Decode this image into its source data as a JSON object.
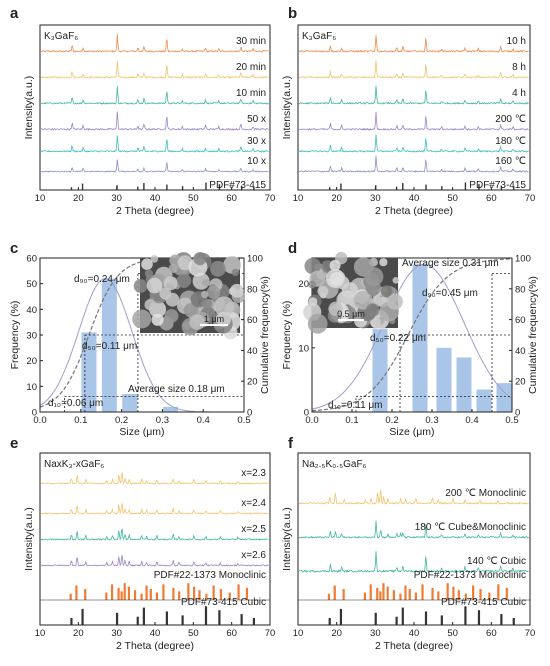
{
  "colors": {
    "orange": "#f08a4b",
    "yellow": "#f2c46d",
    "teal": "#43b7a4",
    "purple": "#9d87c6",
    "cyan": "#3fbfc0",
    "slate": "#8c93c7",
    "bar_blue": "#a9c6e8",
    "ref_orange": "#f07b32",
    "ref_black": "#333333",
    "fit_line": "#a0a0cc"
  },
  "panels": {
    "a": {
      "letter": "a",
      "compound": "K₃GaF₆",
      "ylabel": "Intensity(a.u.)",
      "xlabel": "2 Theta (degree)",
      "xticks": [
        "10",
        "20",
        "30",
        "40",
        "50",
        "60",
        "70"
      ],
      "traces": [
        "30 min",
        "20 min",
        "10 min",
        "50 x",
        "30 x",
        "10 x"
      ],
      "ref": "PDF#73-415"
    },
    "b": {
      "letter": "b",
      "compound": "K₃GaF₆",
      "ylabel": "Intensity(a.u.)",
      "xlabel": "2 Theta (degree)",
      "xticks": [
        "10",
        "20",
        "30",
        "40",
        "50",
        "60",
        "70"
      ],
      "traces": [
        "10 h",
        "8 h",
        "4 h",
        "200 ℃",
        "180 ℃",
        "160 ℃"
      ],
      "ref": "PDF#73-415"
    },
    "c": {
      "letter": "c",
      "ylabel_left": "Frequency (%)",
      "ylabel_right": "Cumulative frequency(%)",
      "xlabel": "Size (μm)",
      "xticks": [
        "0.0",
        "0.1",
        "0.2",
        "0.3",
        "0.4",
        "0.5"
      ],
      "yticks_left": [
        "0",
        "10",
        "20",
        "30",
        "40",
        "50",
        "60"
      ],
      "yticks_right": [
        "0",
        "20",
        "40",
        "60",
        "80",
        "100"
      ],
      "d90": "d₉₀=0.24 μm",
      "d50": "d₅₀=0.11 μm",
      "d10": "d₁₀=0.06 μm",
      "avg": "Average size 0.18 μm",
      "scale": "1 μm"
    },
    "d": {
      "letter": "d",
      "ylabel_left": "Frequency (%)",
      "ylabel_right": "Cumulative frequency(%)",
      "xlabel": "Size (μm)",
      "xticks": [
        "0.0",
        "0.1",
        "0.2",
        "0.3",
        "0.4",
        "0.5"
      ],
      "yticks_left": [
        "0",
        "10",
        "20"
      ],
      "yticks_right": [
        "0",
        "20",
        "40",
        "60",
        "80",
        "100"
      ],
      "d90": "d₉₀=0.45 μm",
      "d50": "d₅₀=0.22 μm",
      "d10": "d₁₀=0.11 μm",
      "avg": "Average size 0.31 μm",
      "scale": "0.5 μm"
    },
    "e": {
      "letter": "e",
      "compound": "NaxK₃-xGaF₆",
      "ylabel": "Intensity(a.u.)",
      "xlabel": "2 Theta (degree)",
      "xticks": [
        "10",
        "20",
        "30",
        "40",
        "50",
        "60",
        "70"
      ],
      "traces": [
        "x=2.3",
        "x=2.4",
        "x=2.5",
        "x=2.6"
      ],
      "ref1": "PDF#22-1373 Monoclinic",
      "ref2": "PDF#73-415 Cubic"
    },
    "f": {
      "letter": "f",
      "compound": "Na₂.₅K₀.₅GaF₆",
      "ylabel": "Intensity(a.u.)",
      "xlabel": "2 Theta (degree)",
      "xticks": [
        "10",
        "20",
        "30",
        "40",
        "50",
        "60",
        "70"
      ],
      "traces": [
        "200 ℃ Monoclinic",
        "180 ℃ Cube&Monoclinic",
        "140 ℃ Cubic"
      ],
      "ref1": "PDF#22-1373 Monoclinic",
      "ref2": "PDF#73-415 Cubic"
    }
  },
  "chart_data": [
    {
      "panel": "a",
      "type": "line",
      "xlabel": "2 Theta (degree)",
      "ylabel": "Intensity(a.u.)",
      "xlim": [
        10,
        70
      ],
      "series": [
        {
          "name": "30 min"
        },
        {
          "name": "20 min"
        },
        {
          "name": "10 min"
        },
        {
          "name": "50 x"
        },
        {
          "name": "30 x"
        },
        {
          "name": "10 x"
        }
      ],
      "reference": {
        "name": "PDF#73-415",
        "peaks": [
          18.2,
          21.1,
          30.1,
          35.5,
          37.1,
          43.1,
          47.2,
          53.3,
          56.8,
          62.6,
          65.8
        ]
      }
    },
    {
      "panel": "b",
      "type": "line",
      "xlabel": "2 Theta (degree)",
      "ylabel": "Intensity(a.u.)",
      "xlim": [
        10,
        70
      ],
      "series": [
        {
          "name": "10 h"
        },
        {
          "name": "8 h"
        },
        {
          "name": "4 h"
        },
        {
          "name": "200 ℃"
        },
        {
          "name": "180 ℃"
        },
        {
          "name": "160 ℃"
        }
      ],
      "reference": {
        "name": "PDF#73-415",
        "peaks": [
          18.2,
          21.1,
          30.1,
          35.5,
          37.1,
          43.1,
          47.2,
          53.3,
          56.8,
          62.6,
          65.8
        ]
      }
    },
    {
      "panel": "c",
      "type": "bar",
      "xlabel": "Size (μm)",
      "ylabel": "Frequency (%)",
      "y2label": "Cumulative frequency(%)",
      "xlim": [
        0,
        0.5
      ],
      "ylim": [
        0,
        60
      ],
      "y2lim": [
        0,
        100
      ],
      "bars": [
        {
          "x": 0.12,
          "y": 31
        },
        {
          "x": 0.17,
          "y": 52
        },
        {
          "x": 0.22,
          "y": 7
        },
        {
          "x": 0.32,
          "y": 2
        }
      ],
      "d10": 0.06,
      "d50": 0.11,
      "d90": 0.24,
      "average": 0.18
    },
    {
      "panel": "d",
      "type": "bar",
      "xlabel": "Size (μm)",
      "ylabel": "Frequency (%)",
      "y2label": "Cumulative frequency(%)",
      "xlim": [
        0,
        0.5
      ],
      "ylim": [
        0,
        24
      ],
      "y2lim": [
        0,
        100
      ],
      "bars": [
        {
          "x": 0.17,
          "y": 13
        },
        {
          "x": 0.27,
          "y": 23
        },
        {
          "x": 0.33,
          "y": 10
        },
        {
          "x": 0.38,
          "y": 8.5
        },
        {
          "x": 0.43,
          "y": 3.5
        },
        {
          "x": 0.48,
          "y": 4.5
        }
      ],
      "d10": 0.11,
      "d50": 0.22,
      "d90": 0.45,
      "average": 0.31
    },
    {
      "panel": "e",
      "type": "line",
      "xlabel": "2 Theta (degree)",
      "ylabel": "Intensity(a.u.)",
      "xlim": [
        10,
        70
      ],
      "series": [
        {
          "name": "x=2.3"
        },
        {
          "name": "x=2.4"
        },
        {
          "name": "x=2.5"
        },
        {
          "name": "x=2.6"
        }
      ],
      "references": [
        {
          "name": "PDF#22-1373 Monoclinic",
          "peaks": [
            18.0,
            19.5,
            21.8,
            27.3,
            28.8,
            30.5,
            31.3,
            32.1,
            33.2,
            34.8,
            36.5,
            37.8,
            38.9,
            40.5,
            42.2,
            44.8,
            46.3,
            48.7,
            50.2,
            51.6,
            53.4,
            55.3,
            57.2,
            59.5,
            61.8,
            64.0
          ]
        },
        {
          "name": "PDF#73-415 Cubic",
          "peaks": [
            18.2,
            21.1,
            30.1,
            35.5,
            37.1,
            43.1,
            47.2,
            53.3,
            56.8,
            62.6,
            65.8
          ]
        }
      ]
    },
    {
      "panel": "f",
      "type": "line",
      "xlabel": "2 Theta (degree)",
      "ylabel": "Intensity(a.u.)",
      "xlim": [
        10,
        70
      ],
      "series": [
        {
          "name": "200 ℃ Monoclinic"
        },
        {
          "name": "180 ℃ Cube&Monoclinic"
        },
        {
          "name": "140 ℃ Cubic"
        }
      ],
      "references": [
        {
          "name": "PDF#22-1373 Monoclinic",
          "peaks": [
            18.0,
            19.5,
            21.8,
            27.3,
            28.8,
            30.5,
            31.3,
            32.1,
            33.2,
            34.8,
            36.5,
            37.8,
            38.9,
            40.5,
            42.2,
            44.8,
            46.3,
            48.7,
            50.2,
            51.6,
            53.4,
            55.3,
            57.2,
            59.5,
            61.8,
            64.0
          ]
        },
        {
          "name": "PDF#73-415 Cubic",
          "peaks": [
            18.2,
            21.1,
            30.1,
            35.5,
            37.1,
            43.1,
            47.2,
            53.3,
            56.8,
            62.6,
            65.8
          ]
        }
      ]
    }
  ]
}
